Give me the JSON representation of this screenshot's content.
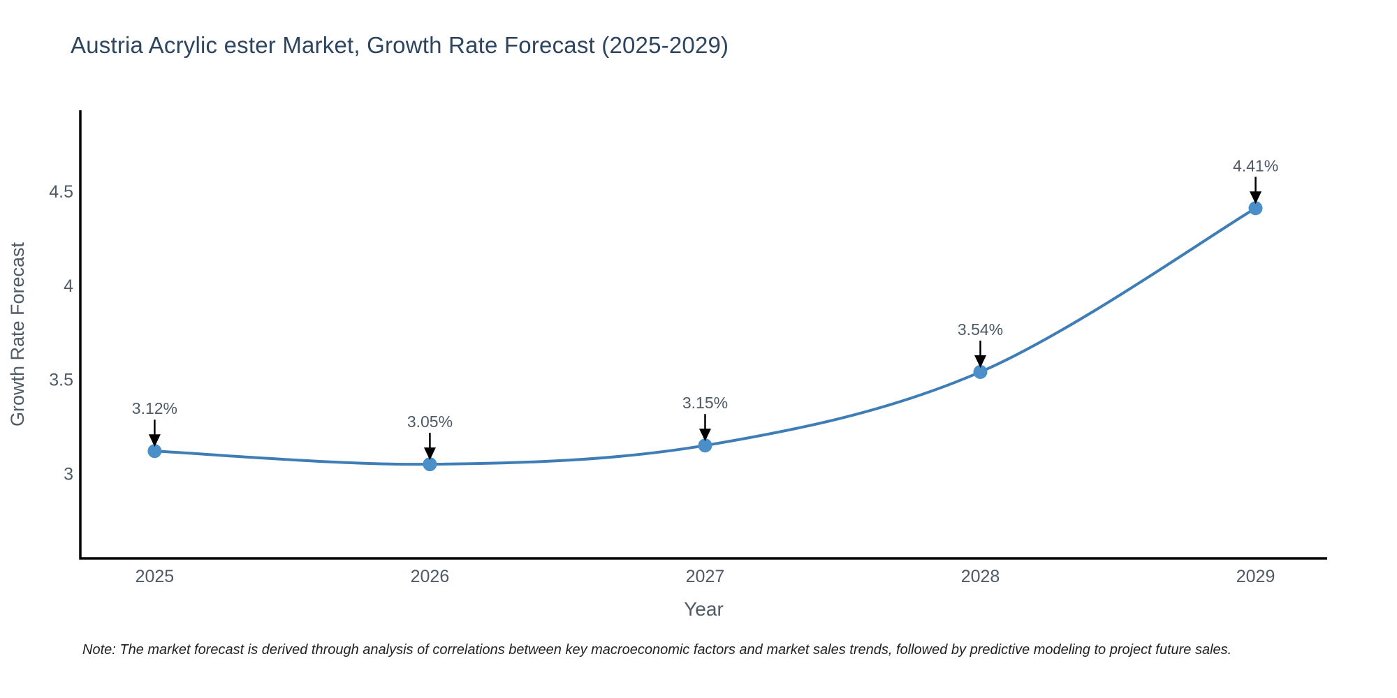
{
  "title": "Austria Acrylic ester Market, Growth Rate Forecast (2025-2029)",
  "note": "Note: The market forecast is derived through analysis of correlations between key macroeconomic factors and market sales trends, followed by predictive modeling to project future sales.",
  "chart_data": {
    "type": "line",
    "title": "Austria Acrylic ester Market, Growth Rate Forecast (2025-2029)",
    "xlabel": "Year",
    "ylabel": "Growth Rate Forecast",
    "categories": [
      2025,
      2026,
      2027,
      2028,
      2029
    ],
    "series": [
      {
        "name": "Growth Rate Forecast",
        "values": [
          3.12,
          3.05,
          3.15,
          3.54,
          4.41
        ]
      }
    ],
    "point_labels": [
      "3.12%",
      "3.05%",
      "3.15%",
      "3.54%",
      "4.41%"
    ],
    "y_ticks": [
      3,
      3.5,
      4,
      4.5
    ],
    "ylim": [
      2.55,
      4.93
    ],
    "xlim": [
      2024.73,
      2029.26
    ],
    "grid": false,
    "legend_position": "none",
    "line_style": "smooth-spline",
    "marker_style": "filled-circle",
    "annotation_style": "black-arrow-down",
    "colors": {
      "line": "#3e7db5",
      "marker": "#4a8fc7",
      "arrow": "#000000",
      "axis": "#000000",
      "tick_text": "#4e5a66",
      "title_text": "#2e4560",
      "note_text": "#222222",
      "background": "#ffffff"
    }
  }
}
